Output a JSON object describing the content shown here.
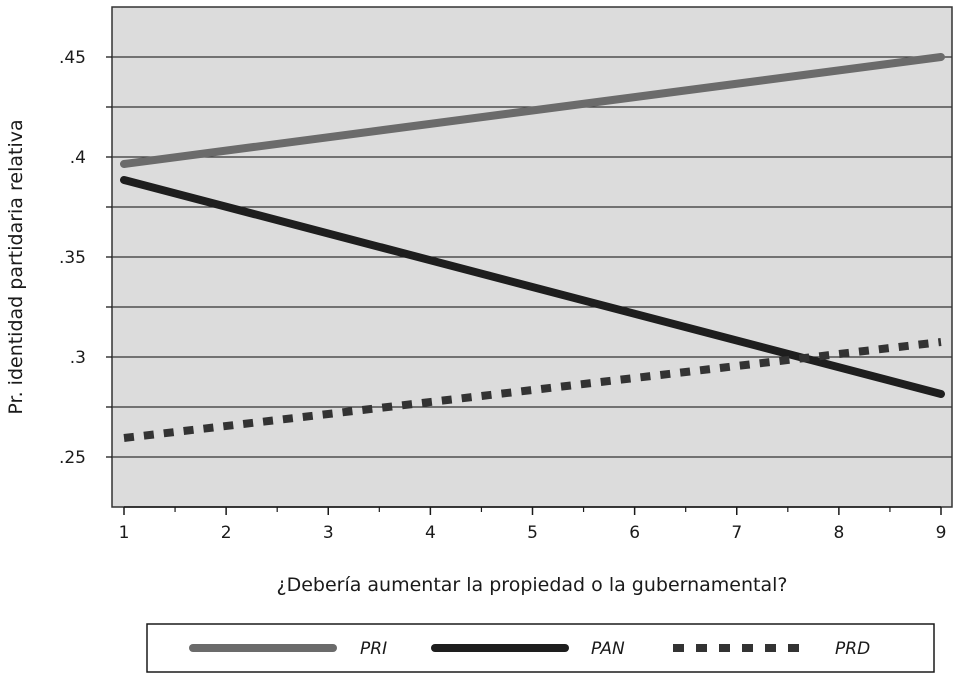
{
  "chart_data": {
    "type": "line",
    "xlabel": "¿Debería aumentar la propiedad o la gubernamental?",
    "ylabel": "Pr. identidad partidaria relativa",
    "xlim": [
      1,
      9
    ],
    "ylim": [
      0.225,
      0.475
    ],
    "x_ticks": [
      1,
      2,
      3,
      4,
      5,
      6,
      7,
      8,
      9
    ],
    "x_tick_labels": [
      "1",
      "2",
      "3",
      "4",
      "5",
      "6",
      "7",
      "8",
      "9"
    ],
    "y_ticks": [
      0.25,
      0.3,
      0.35,
      0.4,
      0.45
    ],
    "y_tick_labels": [
      ".25",
      ".3",
      ".35",
      ".4",
      ".45"
    ],
    "y_minor_ticks": [
      0.275,
      0.325,
      0.375,
      0.425
    ],
    "grid": true,
    "legend_position": "bottom",
    "colors": {
      "plot_background": "#dcdcdc",
      "grid": "#333333",
      "PRI": "#6b6b6b",
      "PAN": "#1e1e1e",
      "PRD": "#333333"
    },
    "series": [
      {
        "name": "PRI",
        "style": "solid",
        "x": [
          1,
          9
        ],
        "y": [
          0.3965,
          0.45
        ]
      },
      {
        "name": "PAN",
        "style": "solid",
        "x": [
          1,
          9
        ],
        "y": [
          0.3885,
          0.2815
        ]
      },
      {
        "name": "PRD",
        "style": "dotted",
        "x": [
          1,
          9
        ],
        "y": [
          0.2595,
          0.3075
        ]
      }
    ]
  }
}
